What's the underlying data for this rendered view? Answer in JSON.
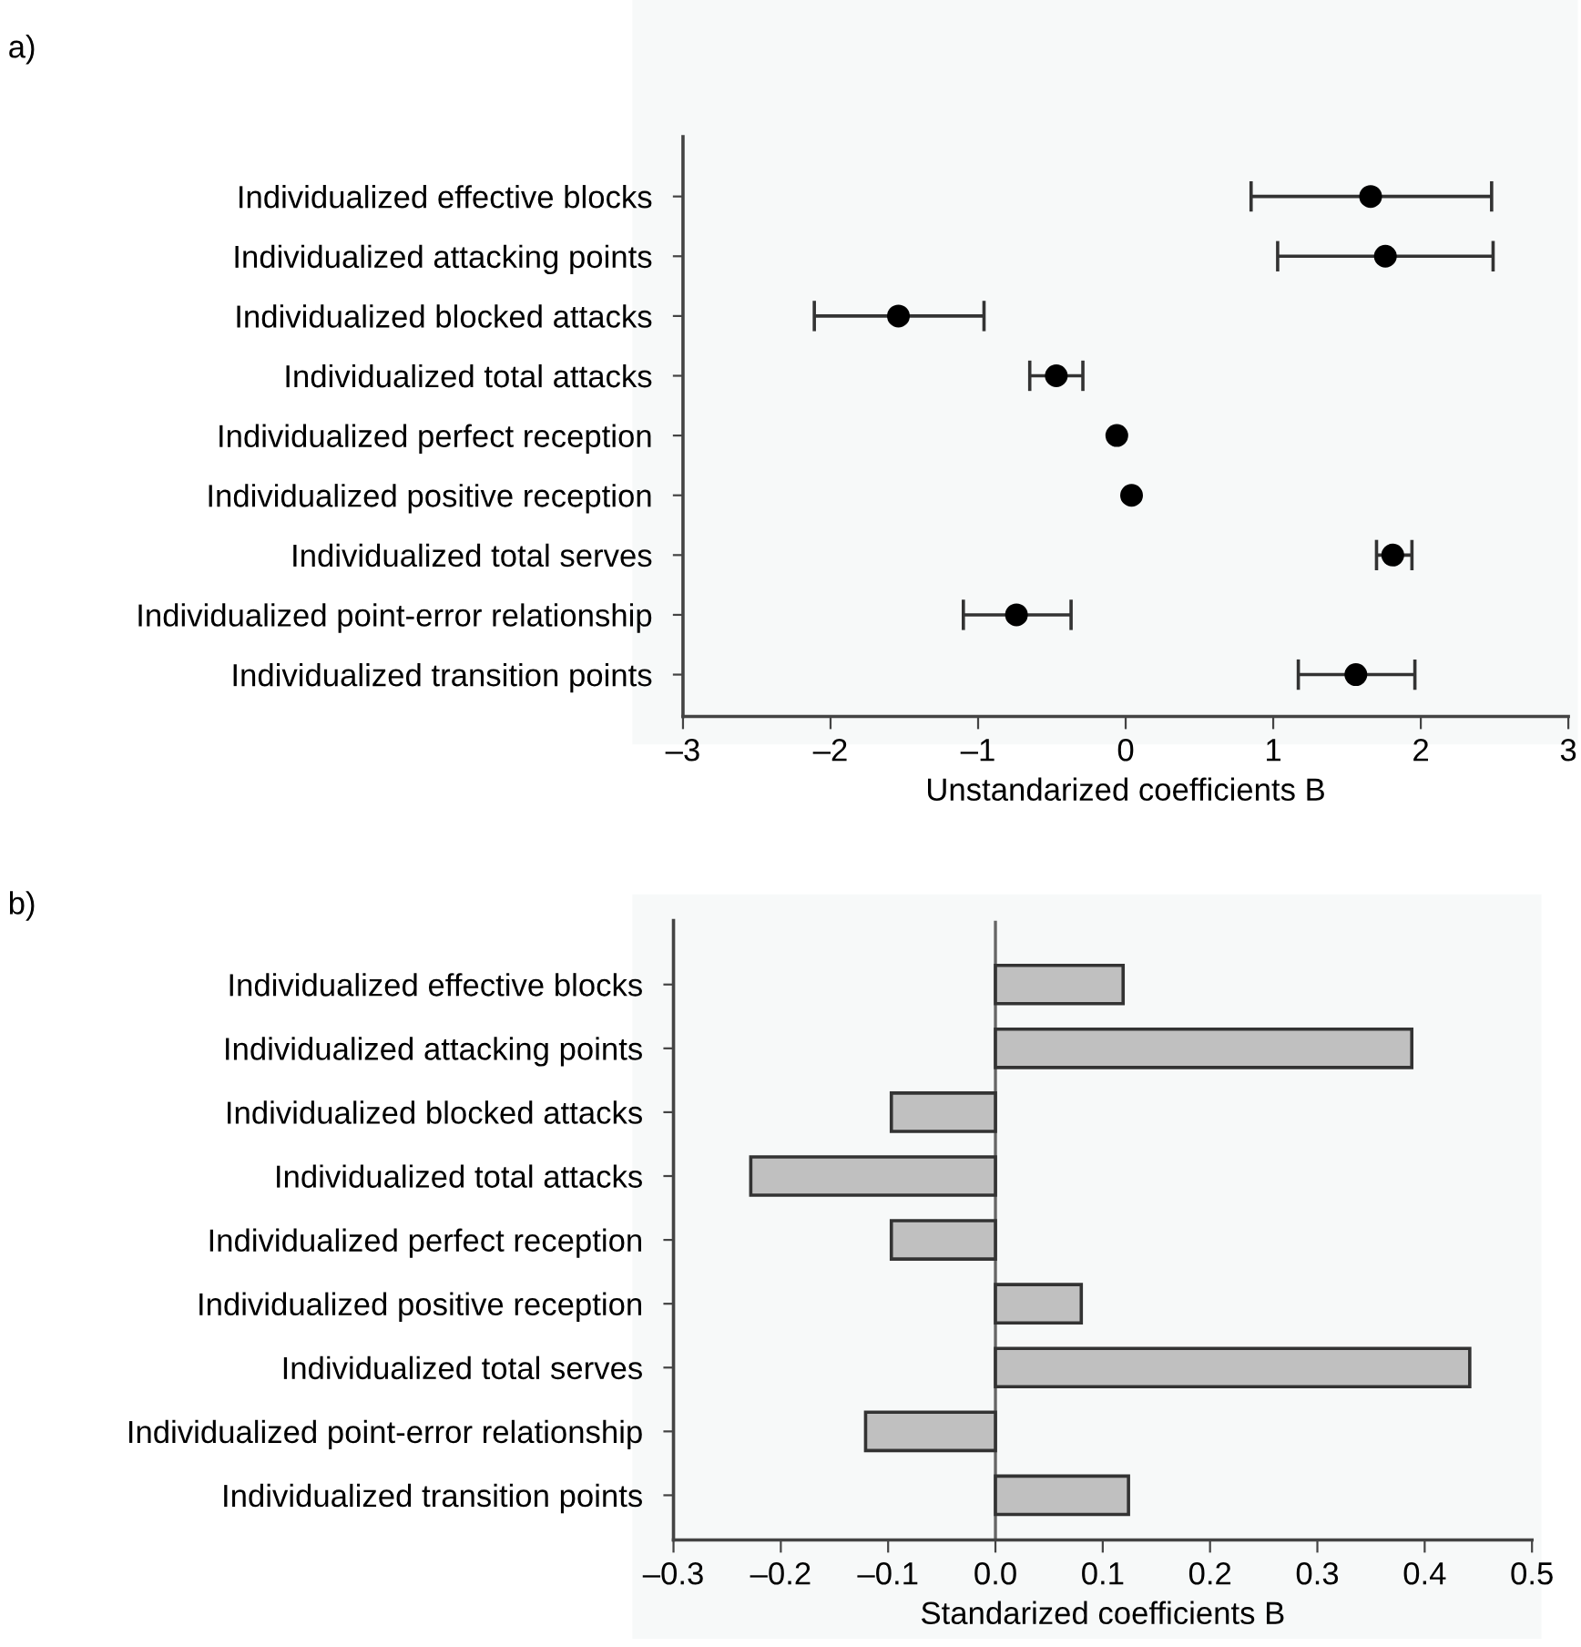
{
  "chart_data": [
    {
      "type": "scatter",
      "categories": [
        "Individualized effective blocks",
        "Individualized attacking points",
        "Individualized blocked attacks",
        "Individualized total attacks",
        "Individualized perfect reception",
        "Individualized positive reception",
        "Individualized total serves",
        "Individualized point-error relationship",
        "Individualized transition points"
      ],
      "orientation": "horizontal",
      "color": "#000000",
      "marker": "circle",
      "values": [
        1.66,
        1.76,
        -1.54,
        -0.47,
        -0.06,
        0.04,
        1.81,
        -0.74,
        1.56
      ],
      "errors": [
        [
          0.85,
          2.48
        ],
        [
          1.03,
          2.49
        ],
        [
          -2.11,
          -0.96
        ],
        [
          -0.65,
          -0.29
        ],
        null,
        null,
        [
          1.7,
          1.94
        ],
        [
          -1.1,
          -0.37
        ],
        [
          1.17,
          1.96
        ]
      ],
      "xlim": [
        -3,
        3
      ],
      "xticks": [
        {
          "value": -3,
          "label": "–3"
        },
        {
          "value": -2,
          "label": "–2"
        },
        {
          "value": -1,
          "label": "–1"
        },
        0,
        1,
        2,
        3
      ],
      "xlabel": "Unstandarized coefficients B",
      "annotations": [
        "a)"
      ],
      "grid": false,
      "legend": false
    },
    {
      "type": "bar",
      "categories": [
        "Individualized effective blocks",
        "Individualized attacking points",
        "Individualized blocked attacks",
        "Individualized total attacks",
        "Individualized perfect reception",
        "Individualized positive reception",
        "Individualized total serves",
        "Individualized point-error relationship",
        "Individualized transition points"
      ],
      "orientation": "horizontal",
      "color": "#c0c0c0",
      "values": [
        0.119,
        0.388,
        -0.097,
        -0.228,
        -0.097,
        0.08,
        0.442,
        -0.121,
        0.124
      ],
      "xlim": [
        -0.3,
        0.5
      ],
      "xticks": [
        {
          "value": -0.3,
          "label": "–0.3"
        },
        {
          "value": -0.2,
          "label": "–0.2"
        },
        {
          "value": -0.1,
          "label": "–0.1"
        },
        {
          "value": 0,
          "label": "0.0"
        },
        0.1,
        0.2,
        0.3,
        0.4,
        0.5
      ],
      "ref_lines": [
        {
          "axis": "x",
          "value": 0,
          "label": null,
          "color": "#666666"
        }
      ],
      "xlabel": "Standarized coefficients B",
      "annotations": [
        "b)"
      ],
      "grid": false,
      "legend": false
    }
  ]
}
